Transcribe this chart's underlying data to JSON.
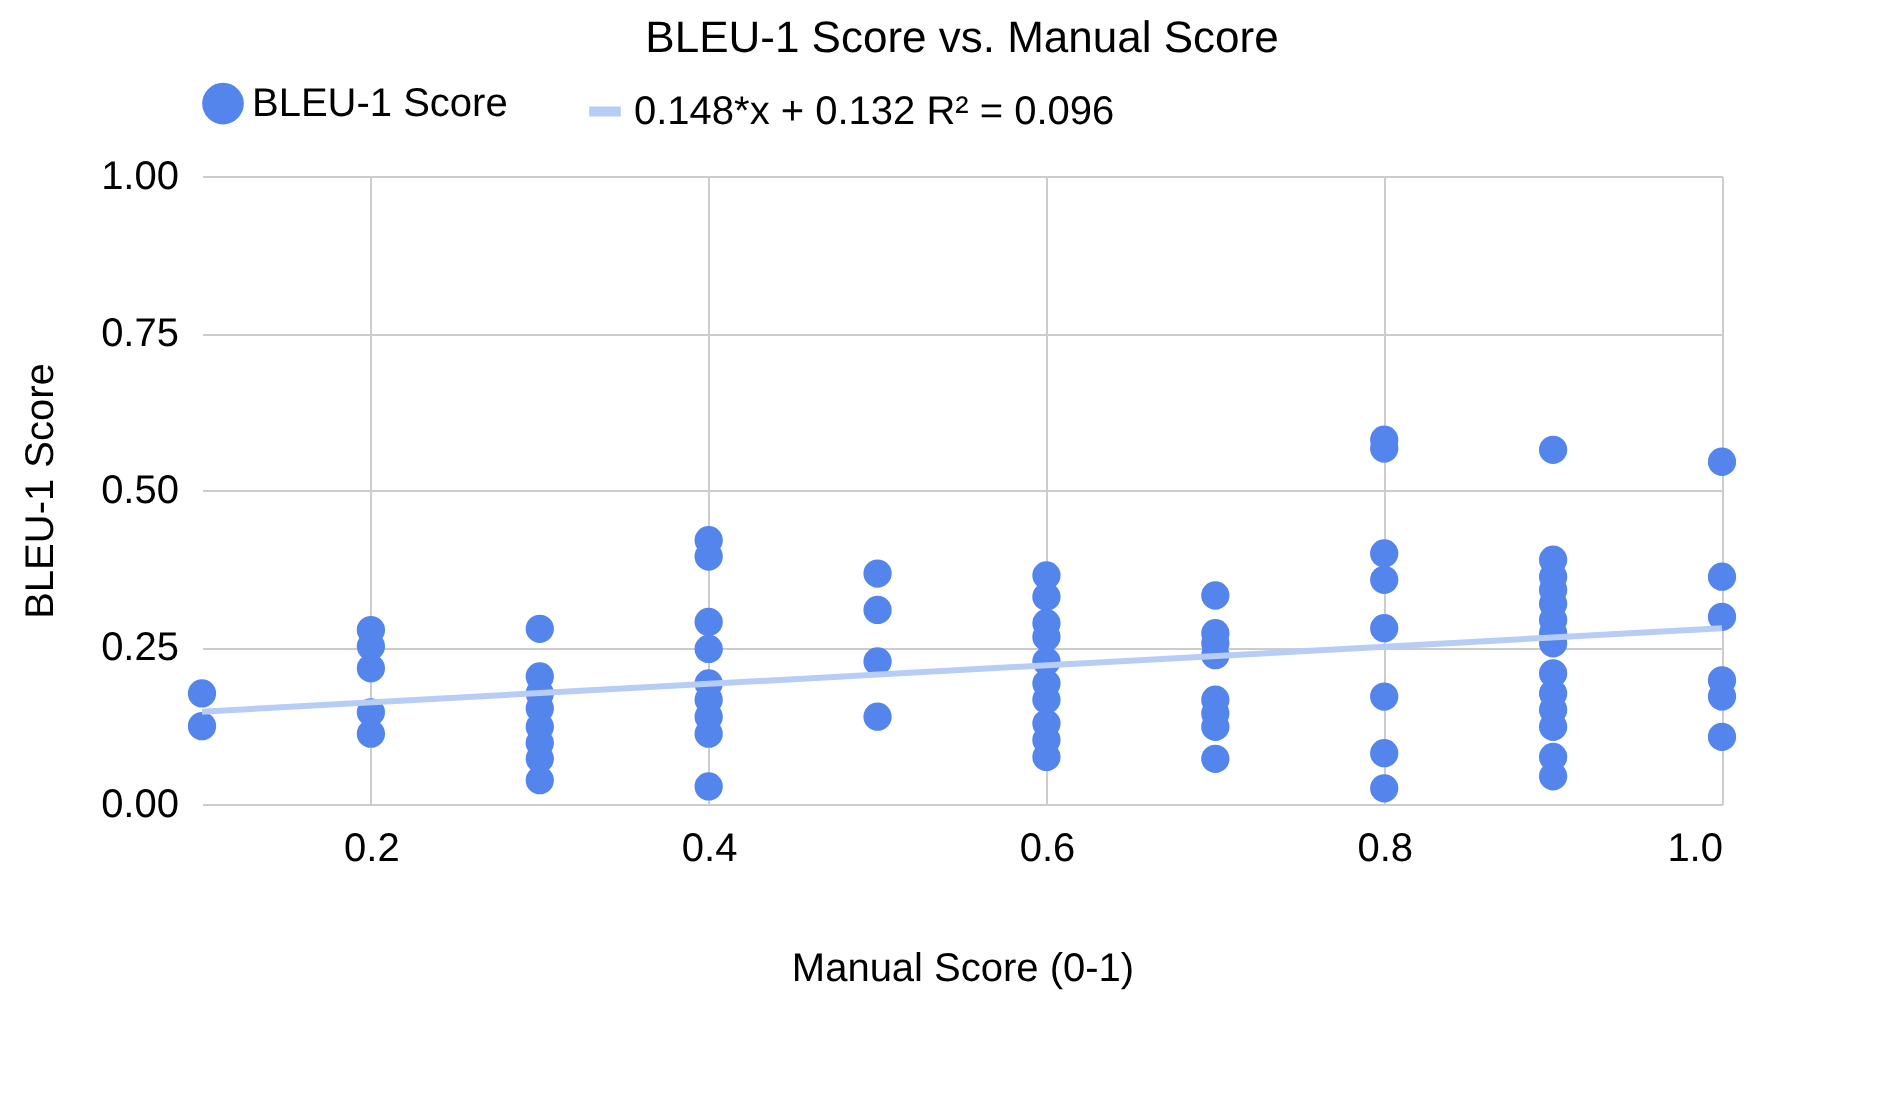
{
  "chart_data": {
    "type": "scatter",
    "title": "BLEU-1 Score vs. Manual Score",
    "xlabel": "Manual Score (0-1)",
    "ylabel": "BLEU-1 Score",
    "xlim": [
      0.1,
      1.0
    ],
    "xticks": [
      {
        "value": 0.2,
        "label": "0.2"
      },
      {
        "value": 0.4,
        "label": "0.4"
      },
      {
        "value": 0.6,
        "label": "0.6"
      },
      {
        "value": 0.8,
        "label": "0.8"
      },
      {
        "value": 1.0,
        "label": "1.0"
      }
    ],
    "ylim": [
      0,
      1.0
    ],
    "yticks": [
      {
        "value": 0,
        "label": "0.00"
      },
      {
        "value": 0.25,
        "label": "0.25"
      },
      {
        "value": 0.5,
        "label": "0.50"
      },
      {
        "value": 0.75,
        "label": "0.75"
      },
      {
        "value": 1.0,
        "label": "1.00"
      }
    ],
    "grid": true,
    "legend": "top",
    "series": [
      {
        "name": "BLEU-1 Score",
        "color": "#5485ec",
        "x": [
          0.1,
          0.1,
          0.2,
          0.2,
          0.2,
          0.2,
          0.2,
          0.3,
          0.3,
          0.3,
          0.3,
          0.3,
          0.3,
          0.3,
          0.3,
          0.4,
          0.4,
          0.4,
          0.4,
          0.4,
          0.4,
          0.4,
          0.4,
          0.4,
          0.5,
          0.5,
          0.5,
          0.5,
          0.6,
          0.6,
          0.6,
          0.6,
          0.6,
          0.6,
          0.6,
          0.6,
          0.6,
          0.6,
          0.7,
          0.7,
          0.7,
          0.7,
          0.7,
          0.7,
          0.7,
          0.7,
          0.8,
          0.8,
          0.8,
          0.8,
          0.8,
          0.8,
          0.8,
          0.8,
          0.9,
          0.9,
          0.9,
          0.9,
          0.9,
          0.9,
          0.9,
          0.9,
          0.9,
          0.9,
          0.9,
          0.9,
          0.9,
          0.9,
          1.0,
          1.0,
          1.0,
          1.0,
          1.0,
          1.0
        ],
        "values": [
          0.176,
          0.124,
          0.277,
          0.251,
          0.216,
          0.146,
          0.112,
          0.279,
          0.203,
          0.176,
          0.152,
          0.123,
          0.097,
          0.072,
          0.038,
          0.42,
          0.394,
          0.29,
          0.247,
          0.192,
          0.166,
          0.139,
          0.112,
          0.028,
          0.367,
          0.309,
          0.227,
          0.139,
          0.364,
          0.33,
          0.288,
          0.266,
          0.227,
          0.192,
          0.166,
          0.128,
          0.102,
          0.075,
          0.332,
          0.272,
          0.256,
          0.237,
          0.166,
          0.144,
          0.123,
          0.072,
          0.58,
          0.566,
          0.399,
          0.357,
          0.28,
          0.171,
          0.081,
          0.025,
          0.564,
          0.389,
          0.362,
          0.341,
          0.319,
          0.293,
          0.272,
          0.256,
          0.208,
          0.176,
          0.15,
          0.123,
          0.075,
          0.044,
          0.545,
          0.362,
          0.298,
          0.197,
          0.171,
          0.107
        ]
      },
      {
        "name": "0.148*x + 0.132 R² = 0.096",
        "type": "line",
        "color": "#b7cdf5",
        "line_style": "solid",
        "x": [
          0.1,
          1.0
        ],
        "values": [
          0.147,
          0.28
        ]
      }
    ]
  }
}
